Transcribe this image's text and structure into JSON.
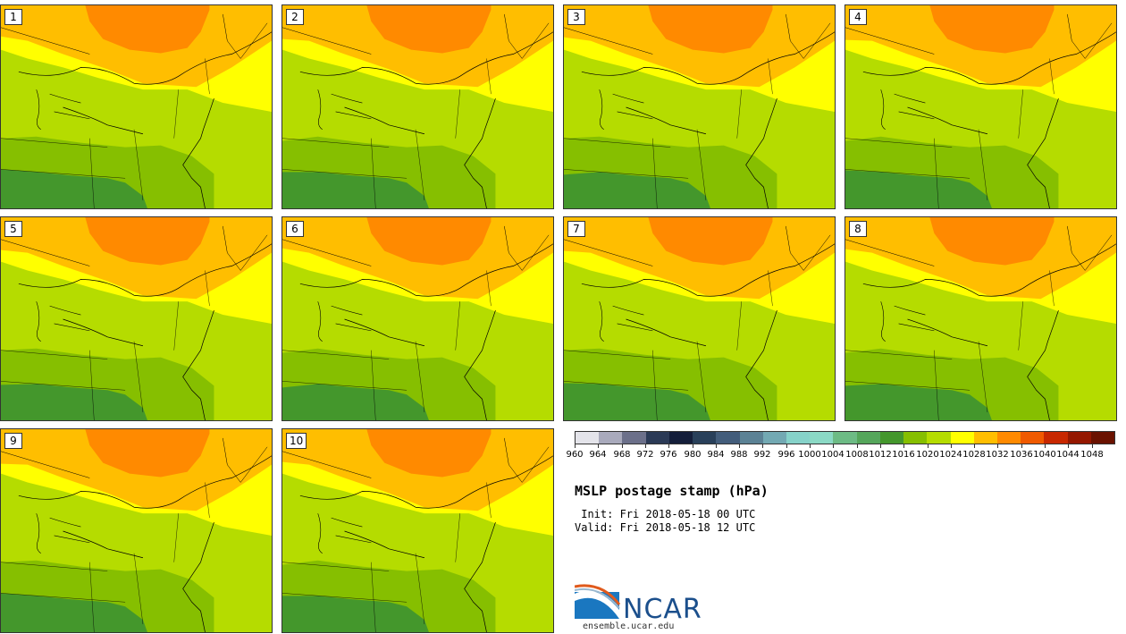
{
  "title": "MSLP postage stamp (hPa)",
  "init_text": " Init: Fri 2018-05-18 00 UTC",
  "valid_text": "Valid: Fri 2018-05-18 12 UTC",
  "logo_text": "NCAR",
  "site_text": "ensemble.ucar.edu",
  "stamps": [
    {
      "label": "1"
    },
    {
      "label": "2"
    },
    {
      "label": "3"
    },
    {
      "label": "4"
    },
    {
      "label": "5"
    },
    {
      "label": "6"
    },
    {
      "label": "7"
    },
    {
      "label": "8"
    },
    {
      "label": "9"
    },
    {
      "label": "10"
    }
  ],
  "colorbar": {
    "levels": [
      "960",
      "964",
      "968",
      "972",
      "976",
      "980",
      "984",
      "988",
      "992",
      "996",
      "1000",
      "1004",
      "1008",
      "1012",
      "1016",
      "1020",
      "1024",
      "1028",
      "1032",
      "1036",
      "1040",
      "1044",
      "1048"
    ],
    "colors": [
      "#e4e4ea",
      "#a9aabc",
      "#6c708a",
      "#2b3a56",
      "#141e3a",
      "#29405a",
      "#435d7b",
      "#5c8295",
      "#73a9b3",
      "#86d2c9",
      "#8bd9c5",
      "#6dbb85",
      "#55a65b",
      "#44972c",
      "#86bf00",
      "#b5dc00",
      "#ffff00",
      "#ffbe00",
      "#ff8a00",
      "#f05a00",
      "#c82800",
      "#951800",
      "#6a1200"
    ]
  },
  "colors": {
    "water": "#ffffff",
    "border": "#000000"
  }
}
